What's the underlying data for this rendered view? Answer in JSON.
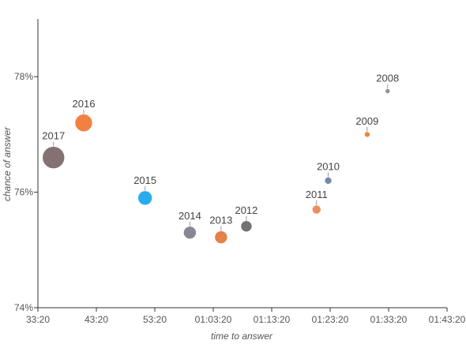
{
  "chart_data": {
    "type": "scatter",
    "title": "",
    "xlabel": "time to answer",
    "ylabel": "chance of answer",
    "xlim_seconds": [
      2000,
      6200
    ],
    "ylim": [
      74,
      79
    ],
    "x_ticks": [
      {
        "value": 2000,
        "label": "33:20"
      },
      {
        "value": 2600,
        "label": "43:20"
      },
      {
        "value": 3200,
        "label": "53:20"
      },
      {
        "value": 3800,
        "label": "01:03:20"
      },
      {
        "value": 4400,
        "label": "01:13:20"
      },
      {
        "value": 5000,
        "label": "01:23:20"
      },
      {
        "value": 5600,
        "label": "01:33:20"
      },
      {
        "value": 6200,
        "label": "01:43:20"
      }
    ],
    "y_ticks": [
      {
        "value": 74,
        "label": "74%"
      },
      {
        "value": 76,
        "label": "76%"
      },
      {
        "value": 78,
        "label": "78%"
      }
    ],
    "grid": false,
    "points": [
      {
        "label": "2017",
        "x": 2160,
        "y": 76.6,
        "size": 14,
        "color": "#7d6a6a"
      },
      {
        "label": "2016",
        "x": 2470,
        "y": 77.2,
        "size": 11,
        "color": "#f07a38"
      },
      {
        "label": "2015",
        "x": 3100,
        "y": 75.9,
        "size": 9,
        "color": "#1ea7ee"
      },
      {
        "label": "2014",
        "x": 3560,
        "y": 75.3,
        "size": 8,
        "color": "#85808f"
      },
      {
        "label": "2013",
        "x": 3880,
        "y": 75.22,
        "size": 8,
        "color": "#e37a3c"
      },
      {
        "label": "2012",
        "x": 4140,
        "y": 75.41,
        "size": 7,
        "color": "#6c6c6c"
      },
      {
        "label": "2011",
        "x": 4860,
        "y": 75.7,
        "size": 5.5,
        "color": "#e9885a"
      },
      {
        "label": "2010",
        "x": 4980,
        "y": 76.2,
        "size": 4.5,
        "color": "#6f85a8"
      },
      {
        "label": "2009",
        "x": 5380,
        "y": 77.0,
        "size": 3.5,
        "color": "#f07a38"
      },
      {
        "label": "2008",
        "x": 5590,
        "y": 77.75,
        "size": 3,
        "color": "#8a8a8a"
      }
    ]
  }
}
